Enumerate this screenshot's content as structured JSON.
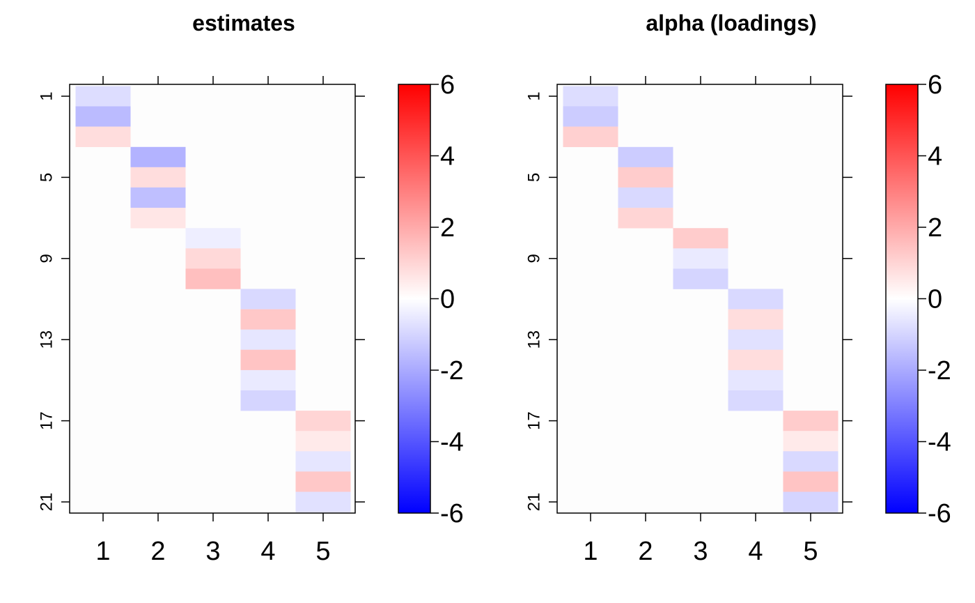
{
  "chart_data": [
    {
      "type": "heatmap",
      "title": "estimates",
      "x_categories": [
        "1",
        "2",
        "3",
        "4",
        "5"
      ],
      "y_ticks": [
        "1",
        "5",
        "9",
        "13",
        "17",
        "21"
      ],
      "n_rows": 21,
      "colorbar": {
        "min": -6,
        "max": 6,
        "ticks": [
          "6",
          "4",
          "2",
          "0",
          "-2",
          "-4",
          "-6"
        ],
        "low_color": "#0000ff",
        "mid_color": "#ffffff",
        "high_color": "#ff0000"
      },
      "cells": [
        {
          "row": 1,
          "col": 1,
          "value": -0.8
        },
        {
          "row": 2,
          "col": 1,
          "value": -1.6
        },
        {
          "row": 3,
          "col": 1,
          "value": 0.8
        },
        {
          "row": 4,
          "col": 2,
          "value": -1.8
        },
        {
          "row": 5,
          "col": 2,
          "value": 0.8
        },
        {
          "row": 6,
          "col": 2,
          "value": -1.5
        },
        {
          "row": 7,
          "col": 2,
          "value": 0.6
        },
        {
          "row": 8,
          "col": 3,
          "value": -0.4
        },
        {
          "row": 9,
          "col": 3,
          "value": 0.9
        },
        {
          "row": 10,
          "col": 3,
          "value": 1.5
        },
        {
          "row": 11,
          "col": 4,
          "value": -0.9
        },
        {
          "row": 12,
          "col": 4,
          "value": 1.3
        },
        {
          "row": 13,
          "col": 4,
          "value": -0.6
        },
        {
          "row": 14,
          "col": 4,
          "value": 1.4
        },
        {
          "row": 15,
          "col": 4,
          "value": -0.5
        },
        {
          "row": 16,
          "col": 4,
          "value": -1.0
        },
        {
          "row": 17,
          "col": 5,
          "value": 1.0
        },
        {
          "row": 18,
          "col": 5,
          "value": 0.5
        },
        {
          "row": 19,
          "col": 5,
          "value": -0.6
        },
        {
          "row": 20,
          "col": 5,
          "value": 1.3
        },
        {
          "row": 21,
          "col": 5,
          "value": -0.7
        }
      ]
    },
    {
      "type": "heatmap",
      "title": "alpha (loadings)",
      "x_categories": [
        "1",
        "2",
        "3",
        "4",
        "5"
      ],
      "y_ticks": [
        "1",
        "5",
        "9",
        "13",
        "17",
        "21"
      ],
      "n_rows": 21,
      "colorbar": {
        "min": -6,
        "max": 6,
        "ticks": [
          "6",
          "4",
          "2",
          "0",
          "-2",
          "-4",
          "-6"
        ],
        "low_color": "#0000ff",
        "mid_color": "#ffffff",
        "high_color": "#ff0000"
      },
      "cells": [
        {
          "row": 1,
          "col": 1,
          "value": -0.8
        },
        {
          "row": 2,
          "col": 1,
          "value": -1.2
        },
        {
          "row": 3,
          "col": 1,
          "value": 1.1
        },
        {
          "row": 4,
          "col": 2,
          "value": -1.2
        },
        {
          "row": 5,
          "col": 2,
          "value": 1.2
        },
        {
          "row": 6,
          "col": 2,
          "value": -0.9
        },
        {
          "row": 7,
          "col": 2,
          "value": 1.0
        },
        {
          "row": 8,
          "col": 3,
          "value": 1.2
        },
        {
          "row": 9,
          "col": 3,
          "value": -0.5
        },
        {
          "row": 10,
          "col": 3,
          "value": -1.0
        },
        {
          "row": 11,
          "col": 4,
          "value": -0.9
        },
        {
          "row": 12,
          "col": 4,
          "value": 0.8
        },
        {
          "row": 13,
          "col": 4,
          "value": -0.7
        },
        {
          "row": 14,
          "col": 4,
          "value": 0.8
        },
        {
          "row": 15,
          "col": 4,
          "value": -0.6
        },
        {
          "row": 16,
          "col": 4,
          "value": -0.9
        },
        {
          "row": 17,
          "col": 5,
          "value": 1.2
        },
        {
          "row": 18,
          "col": 5,
          "value": 0.5
        },
        {
          "row": 19,
          "col": 5,
          "value": -0.9
        },
        {
          "row": 20,
          "col": 5,
          "value": 1.4
        },
        {
          "row": 21,
          "col": 5,
          "value": -1.0
        }
      ]
    }
  ]
}
